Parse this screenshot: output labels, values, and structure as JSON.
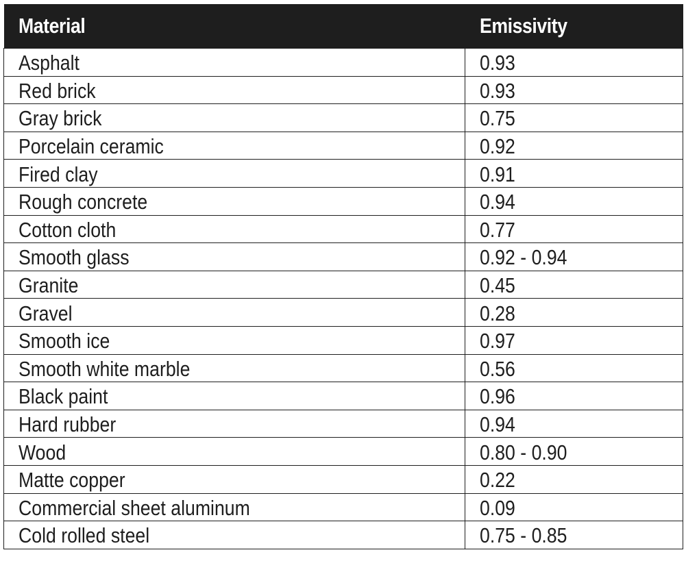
{
  "table": {
    "headers": [
      "Material",
      "Emissivity"
    ],
    "rows": [
      [
        "Asphalt",
        "0.93"
      ],
      [
        "Red brick",
        "0.93"
      ],
      [
        "Gray brick",
        "0.75"
      ],
      [
        "Porcelain ceramic",
        "0.92"
      ],
      [
        "Fired clay",
        "0.91"
      ],
      [
        "Rough concrete",
        "0.94"
      ],
      [
        "Cotton cloth",
        "0.77"
      ],
      [
        "Smooth glass",
        "0.92 - 0.94"
      ],
      [
        "Granite",
        "0.45"
      ],
      [
        "Gravel",
        "0.28"
      ],
      [
        "Smooth ice",
        "0.97"
      ],
      [
        "Smooth white marble",
        "0.56"
      ],
      [
        "Black paint",
        "0.96"
      ],
      [
        "Hard rubber",
        "0.94"
      ],
      [
        "Wood",
        "0.80 - 0.90"
      ],
      [
        "Matte copper",
        "0.22"
      ],
      [
        "Commercial sheet aluminum",
        "0.09"
      ],
      [
        "Cold rolled steel",
        "0.75 - 0.85"
      ]
    ]
  },
  "colors": {
    "header_bg": "#1e1e1e",
    "header_text": "#ffffff",
    "body_text": "#1e1e1e",
    "border": "#1e1e1e"
  }
}
